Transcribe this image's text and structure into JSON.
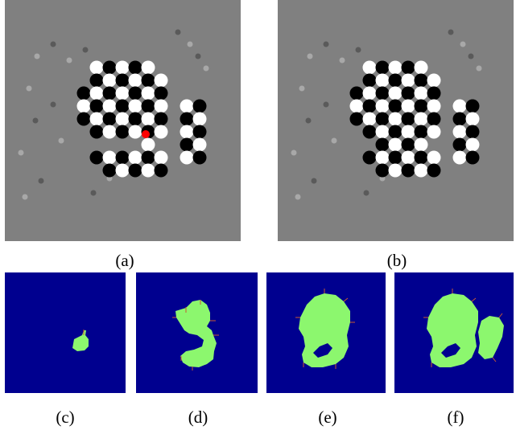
{
  "figure": {
    "panels": [
      {
        "id": "a",
        "caption": "(a)",
        "kind": "checkerboard",
        "show_marker": true
      },
      {
        "id": "b",
        "caption": "(b)",
        "kind": "checkerboard",
        "show_marker": false
      },
      {
        "id": "c",
        "caption": "(c)",
        "kind": "mask",
        "stage": 0
      },
      {
        "id": "d",
        "caption": "(d)",
        "kind": "mask",
        "stage": 1
      },
      {
        "id": "e",
        "caption": "(e)",
        "kind": "mask",
        "stage": 2
      },
      {
        "id": "f",
        "caption": "(f)",
        "kind": "mask",
        "stage": 3
      }
    ],
    "colors": {
      "gray_background": "#808080",
      "checker_black": "#000000",
      "checker_white": "#ffffff",
      "marker": "#ff0000",
      "mask_background": "#00008f",
      "mask_region": "#8cf76e",
      "mask_edge": "#c85a32"
    }
  }
}
